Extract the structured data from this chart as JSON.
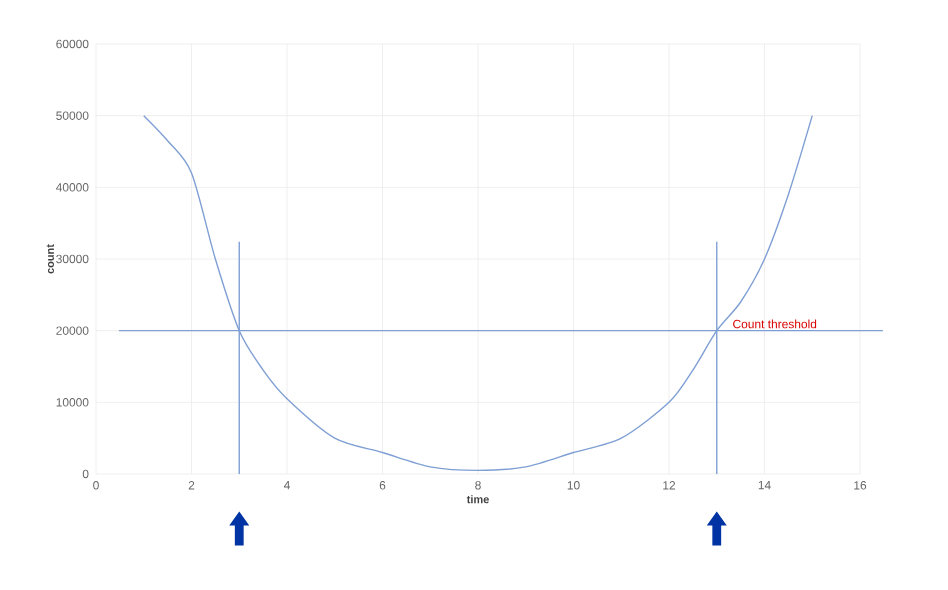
{
  "chart_data": {
    "type": "line",
    "xlabel": "time",
    "ylabel": "count",
    "x": [
      1,
      1.5,
      2,
      2.5,
      3,
      3.5,
      4,
      5,
      6,
      7,
      8,
      9,
      10,
      11,
      12,
      12.5,
      13,
      13.5,
      14,
      14.5,
      15
    ],
    "values": [
      50000,
      46500,
      42000,
      30000,
      20000,
      14500,
      10500,
      5000,
      3000,
      1000,
      500,
      1000,
      3000,
      5000,
      10000,
      14500,
      20000,
      24000,
      30000,
      39000,
      50000
    ],
    "color": "#7f9fd4",
    "xlim": [
      0,
      16
    ],
    "xticks": [
      0,
      2,
      4,
      6,
      8,
      10,
      12,
      14,
      16
    ],
    "ylim": [
      0,
      60000
    ],
    "yticks": [
      0,
      10000,
      20000,
      30000,
      40000,
      50000,
      60000
    ],
    "grid": true,
    "marker": "none",
    "line_style": "solid",
    "ref_lines": [
      {
        "axis": "y",
        "value": 20000,
        "label": "Count threshold",
        "color": "#7f9fd4"
      },
      {
        "axis": "x",
        "value": 3,
        "color": "#7f9fd4"
      },
      {
        "axis": "x",
        "value": 13,
        "color": "#7f9fd4"
      }
    ]
  }
}
